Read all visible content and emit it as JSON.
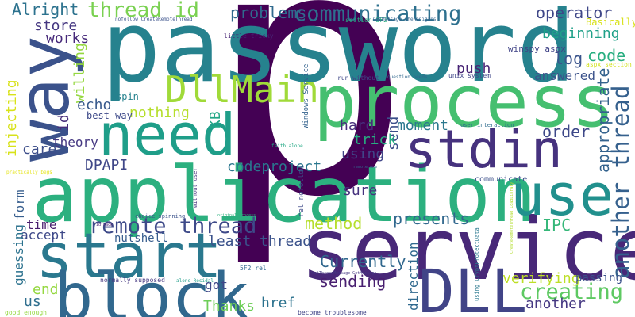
{
  "words": [
    {
      "text": "p",
      "color": "#440154"
    },
    {
      "text": "password",
      "color": "#26828e"
    },
    {
      "text": "application",
      "color": "#2cb07f"
    },
    {
      "text": "service",
      "color": "#482878"
    },
    {
      "text": "process",
      "color": "#45bf70"
    },
    {
      "text": "way",
      "color": "#3b528b"
    },
    {
      "text": "start",
      "color": "#2a788e"
    },
    {
      "text": "block",
      "color": "#31688e"
    },
    {
      "text": "need",
      "color": "#1f9e89"
    },
    {
      "text": "use",
      "color": "#21908d"
    },
    {
      "text": "stdin",
      "color": "#46327e"
    },
    {
      "text": "DLL",
      "color": "#414487"
    },
    {
      "text": "DllMain",
      "color": "#a0da39"
    },
    {
      "text": "remote thread",
      "color": "#3e4a89"
    },
    {
      "text": "another thread",
      "color": "#35608d"
    },
    {
      "text": "creating",
      "color": "#5ec962"
    },
    {
      "text": "communicating",
      "color": "#2d708e"
    },
    {
      "text": "thread id",
      "color": "#7ad151"
    },
    {
      "text": "Alright",
      "color": "#2c728e"
    },
    {
      "text": "problems",
      "color": "#306a8e"
    },
    {
      "text": "operator",
      "color": "#3f4788"
    },
    {
      "text": "beginning",
      "color": "#1fa088"
    },
    {
      "text": "store",
      "color": "#453781"
    },
    {
      "text": "works",
      "color": "#472a7a"
    },
    {
      "text": "willing",
      "color": "#95d840"
    },
    {
      "text": "log",
      "color": "#3a548c"
    },
    {
      "text": "code",
      "color": "#28ae80"
    },
    {
      "text": "answered",
      "color": "#3b528b"
    },
    {
      "text": "push",
      "color": "#482475"
    },
    {
      "text": "echo",
      "color": "#38598c"
    },
    {
      "text": "nothing",
      "color": "#b5de2b"
    },
    {
      "text": "hard",
      "color": "#472d7b"
    },
    {
      "text": "send",
      "color": "#3c4f8a"
    },
    {
      "text": "moment",
      "color": "#2a788e"
    },
    {
      "text": "order",
      "color": "#3e4989"
    },
    {
      "text": "appropriate",
      "color": "#33628d"
    },
    {
      "text": "trick",
      "color": "#27ad81"
    },
    {
      "text": "using",
      "color": "#404588"
    },
    {
      "text": "care",
      "color": "#3d4e8a"
    },
    {
      "text": "theory",
      "color": "#453882"
    },
    {
      "text": "DPAPI",
      "color": "#3f4788"
    },
    {
      "text": "codeproject",
      "color": "#2a778e"
    },
    {
      "text": "sure",
      "color": "#46327e"
    },
    {
      "text": "injecting",
      "color": "#d8e219"
    },
    {
      "text": "id",
      "color": "#472d7b"
    },
    {
      "text": "KB",
      "color": "#21a685"
    },
    {
      "text": "form",
      "color": "#365d8d"
    },
    {
      "text": "time",
      "color": "#481c6e"
    },
    {
      "text": "accept",
      "color": "#3e4989"
    },
    {
      "text": "guessing",
      "color": "#2c728e"
    },
    {
      "text": "nutshell",
      "color": "#365c8d"
    },
    {
      "text": "method",
      "color": "#b5de2b"
    },
    {
      "text": "presents",
      "color": "#31688e"
    },
    {
      "text": "least thread",
      "color": "#3b528b"
    },
    {
      "text": "IPC",
      "color": "#35b779"
    },
    {
      "text": "Currently",
      "color": "#31688e"
    },
    {
      "text": "verifying",
      "color": "#bddf26"
    },
    {
      "text": "passing",
      "color": "#3b528b"
    },
    {
      "text": "end",
      "color": "#95d840"
    },
    {
      "text": "us",
      "color": "#2e6e8e"
    },
    {
      "text": "got",
      "color": "#3f4788"
    },
    {
      "text": "Thanks",
      "color": "#6ece58"
    },
    {
      "text": "href",
      "color": "#2c728e"
    },
    {
      "text": "sending",
      "color": "#481f70"
    },
    {
      "text": "another",
      "color": "#453882"
    },
    {
      "text": "direction",
      "color": "#30698e"
    },
    {
      "text": "spin",
      "color": "#26828e"
    },
    {
      "text": "best way",
      "color": "#3e4a89"
    },
    {
      "text": "Basically",
      "color": "#d8e219"
    },
    {
      "text": "winspy aspx",
      "color": "#414487"
    },
    {
      "text": "little tricky",
      "color": "#482576"
    },
    {
      "text": "section 5F2",
      "color": "#2ab07f"
    },
    {
      "text": "GetMessage shenanigans",
      "color": "#33638d"
    },
    {
      "text": "nofollow CreateRemoteThread",
      "color": "#3b528b"
    },
    {
      "text": "aspx section",
      "color": "#d2e21b"
    },
    {
      "text": "run without",
      "color": "#3f4788"
    },
    {
      "text": "question needs",
      "color": "#31688e"
    },
    {
      "text": "unix system",
      "color": "#404688"
    },
    {
      "text": "Windows Service",
      "color": "#33628d"
    },
    {
      "text": "user interaction",
      "color": "#2f6c8e"
    },
    {
      "text": "faith alone",
      "color": "#22a884"
    },
    {
      "text": "remote one",
      "color": "#31688e"
    },
    {
      "text": "communicate",
      "color": "#3c4f8a"
    },
    {
      "text": "practically begs",
      "color": "#e5e419"
    },
    {
      "text": "id back",
      "color": "#482475"
    },
    {
      "text": "choice spinning",
      "color": "#3b528b"
    },
    {
      "text": "original process",
      "color": "#2cb17e"
    },
    {
      "text": "normally supposed",
      "color": "#453781"
    },
    {
      "text": "alone Residal",
      "color": "#1f9e89"
    },
    {
      "text": "5F2 rel",
      "color": "#31688e"
    },
    {
      "text": "rel nofollow",
      "color": "#3e4a89"
    },
    {
      "text": "without user",
      "color": "#46327e"
    },
    {
      "text": "using CryptProtectData",
      "color": "#2a788e"
    },
    {
      "text": "PostThreadMessage GetMessage",
      "color": "#453882"
    },
    {
      "text": "CreateRemoteThread LoadLibrary",
      "color": "#b2dd2d"
    },
    {
      "text": "become troublesome",
      "color": "#414487"
    },
    {
      "text": "good enough",
      "color": "#95d840"
    }
  ]
}
